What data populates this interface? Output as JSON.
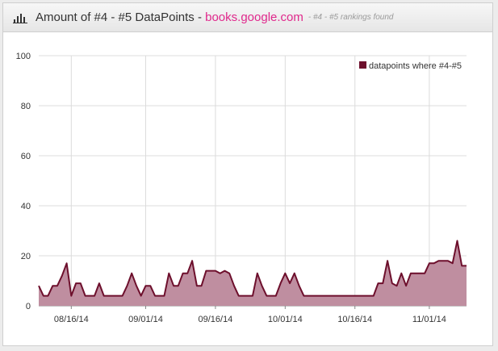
{
  "header": {
    "title_prefix": "Amount of #4 - #5 DataPoints - ",
    "site": "books.google.com",
    "subtitle": "- #4 - #5 rankings found",
    "icon": "bar-chart-icon"
  },
  "colors": {
    "series_line": "#6d0f2c",
    "series_fill": "#bf8ea0",
    "site_link": "#e0288c"
  },
  "chart_data": {
    "type": "area",
    "ylim": [
      0,
      100
    ],
    "yticks": [
      0,
      20,
      40,
      60,
      80,
      100
    ],
    "xlim": [
      0,
      92
    ],
    "xticks": [
      {
        "label": "08/16/14",
        "x": 7
      },
      {
        "label": "09/01/14",
        "x": 23
      },
      {
        "label": "09/16/14",
        "x": 38
      },
      {
        "label": "10/01/14",
        "x": 53
      },
      {
        "label": "10/16/14",
        "x": 68
      },
      {
        "label": "11/01/14",
        "x": 84
      }
    ],
    "legend_position": "top-right",
    "grid": true,
    "series": [
      {
        "name": "datapoints where #4-#5",
        "x": [
          0,
          1,
          2,
          3,
          4,
          5,
          6,
          7,
          8,
          9,
          10,
          11,
          12,
          13,
          14,
          15,
          16,
          17,
          18,
          19,
          20,
          21,
          22,
          23,
          24,
          25,
          26,
          27,
          28,
          29,
          30,
          31,
          32,
          33,
          34,
          35,
          36,
          37,
          38,
          39,
          40,
          41,
          42,
          43,
          44,
          45,
          46,
          47,
          48,
          49,
          50,
          51,
          52,
          53,
          54,
          55,
          56,
          57,
          58,
          59,
          60,
          61,
          62,
          63,
          64,
          65,
          66,
          67,
          68,
          69,
          70,
          71,
          72,
          73,
          74,
          75,
          76,
          77,
          78,
          79,
          80,
          81,
          82,
          83,
          84,
          85,
          86,
          87,
          88,
          89,
          90,
          91,
          92
        ],
        "values": [
          8,
          4,
          4,
          8,
          8,
          12,
          17,
          4,
          9,
          9,
          4,
          4,
          4,
          9,
          4,
          4,
          4,
          4,
          4,
          8,
          13,
          8,
          4,
          8,
          8,
          4,
          4,
          4,
          13,
          8,
          8,
          13,
          13,
          18,
          8,
          8,
          14,
          14,
          14,
          13,
          14,
          13,
          8,
          4,
          4,
          4,
          4,
          13,
          8,
          4,
          4,
          4,
          9,
          13,
          9,
          13,
          8,
          4,
          4,
          4,
          4,
          4,
          4,
          4,
          4,
          4,
          4,
          4,
          4,
          4,
          4,
          4,
          4,
          9,
          9,
          18,
          9,
          8,
          13,
          8,
          13,
          13,
          13,
          13,
          17,
          17,
          18,
          18,
          18,
          17,
          26,
          16,
          16
        ]
      }
    ]
  }
}
